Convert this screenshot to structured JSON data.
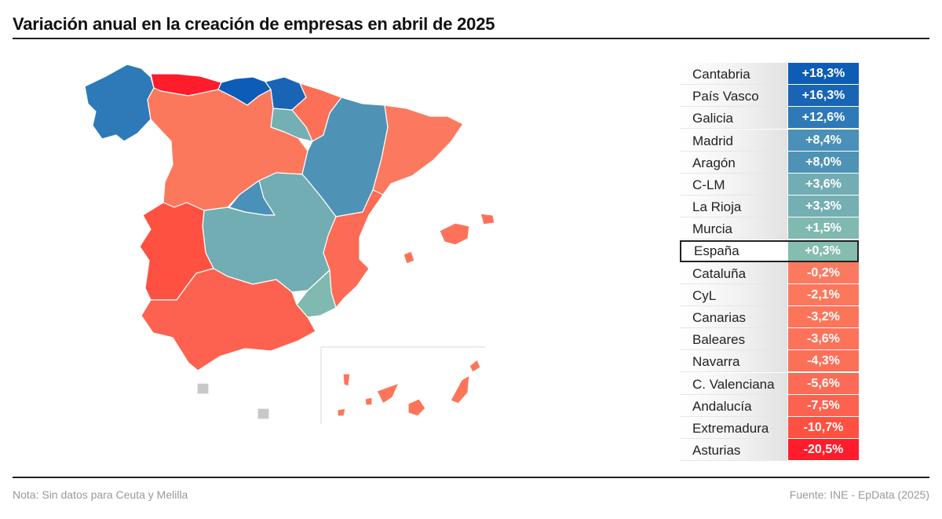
{
  "title": "Variación anual en la creación de empresas en abril de 2025",
  "note": "Nota: Sin datos para Ceuta y Melilla",
  "source": "Fuente: INE - EpData (2025)",
  "colors": {
    "strong_positive": "#0d5cb6",
    "positive": "#2e7ab8",
    "mid_positive": "#4a90b8",
    "light_positive": "#72adb3",
    "slight_positive": "#7fbab0",
    "slight_negative": "#fb7a5f",
    "negative": "#fd6a55",
    "strong_negative": "#fe5141",
    "extreme_negative": "#ff1c2b",
    "no_data": "#c8c8c8"
  },
  "chart_data": {
    "type": "choropleth",
    "unit": "%",
    "regions": [
      {
        "name": "Cantabria",
        "label": "+18,3%",
        "value": 18.3,
        "color": "#0d5cb6"
      },
      {
        "name": "País Vasco",
        "label": "+16,3%",
        "value": 16.3,
        "color": "#1a64b5"
      },
      {
        "name": "Galicia",
        "label": "+12,6%",
        "value": 12.6,
        "color": "#2e7ab8"
      },
      {
        "name": "Madrid",
        "label": "+8,4%",
        "value": 8.4,
        "color": "#4a90b8"
      },
      {
        "name": "Aragón",
        "label": "+8,0%",
        "value": 8.0,
        "color": "#4e93b6"
      },
      {
        "name": "C-LM",
        "label": "+3,6%",
        "value": 3.6,
        "color": "#72adb3"
      },
      {
        "name": "La Rioja",
        "label": "+3,3%",
        "value": 3.3,
        "color": "#74afb3"
      },
      {
        "name": "Murcia",
        "label": "+1,5%",
        "value": 1.5,
        "color": "#80b9b0"
      },
      {
        "name": "España",
        "label": "+0,3%",
        "value": 0.3,
        "color": "#85bdb0",
        "highlight": true
      },
      {
        "name": "Cataluña",
        "label": "-0,2%",
        "value": -0.2,
        "color": "#fb7a5f"
      },
      {
        "name": "CyL",
        "label": "-2,1%",
        "value": -2.1,
        "color": "#fc785d"
      },
      {
        "name": "Canarias",
        "label": "-3,2%",
        "value": -3.2,
        "color": "#fc755b"
      },
      {
        "name": "Baleares",
        "label": "-3,6%",
        "value": -3.6,
        "color": "#fc735a"
      },
      {
        "name": "Navarra",
        "label": "-4,3%",
        "value": -4.3,
        "color": "#fc7058"
      },
      {
        "name": "C. Valenciana",
        "label": "-5,6%",
        "value": -5.6,
        "color": "#fd6a55"
      },
      {
        "name": "Andalucía",
        "label": "-7,5%",
        "value": -7.5,
        "color": "#fd6250"
      },
      {
        "name": "Extremadura",
        "label": "-10,7%",
        "value": -10.7,
        "color": "#fe5141"
      },
      {
        "name": "Asturias",
        "label": "-20,5%",
        "value": -20.5,
        "color": "#ff1c2b"
      }
    ]
  }
}
